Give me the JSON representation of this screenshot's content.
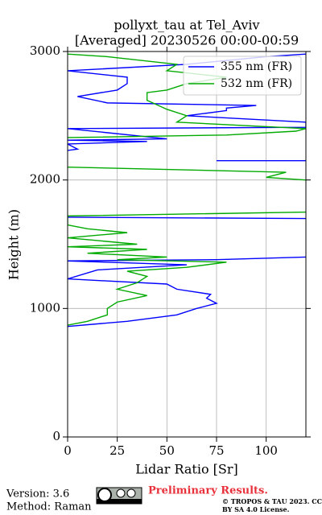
{
  "chart_data": {
    "type": "line",
    "title": "pollyxt_tau at Tel_Aviv",
    "subtitle": "[Averaged] 20230526 00:00-00:59",
    "x_label": "Lidar Ratio [Sr]",
    "y_label": "Height (m)",
    "xlim": [
      0,
      120
    ],
    "ylim": [
      0,
      3000
    ],
    "xticks": [
      0,
      25,
      50,
      75,
      100
    ],
    "yticks": [
      0,
      1000,
      2000,
      3000
    ],
    "grid": true,
    "legend": "upper right",
    "series": [
      {
        "name": "355 nm (FR)",
        "color": "#0000ff",
        "x": [
          0,
          30,
          55,
          65,
          75,
          70,
          72,
          55,
          50,
          0,
          15,
          60,
          0,
          75,
          120,
          null,
          120,
          0,
          null,
          75,
          120,
          null,
          0,
          5,
          0,
          40,
          0,
          50,
          0,
          120,
          120,
          60,
          80,
          80,
          95,
          20,
          5,
          25,
          30,
          30,
          0,
          60,
          100,
          120
        ],
        "y": [
          860,
          900,
          950,
          1000,
          1040,
          1080,
          1110,
          1150,
          1190,
          1230,
          1300,
          1340,
          1370,
          1380,
          1400,
          null,
          1700,
          1710,
          null,
          2150,
          2150,
          null,
          2230,
          2240,
          2280,
          2300,
          2310,
          2320,
          2400,
          2410,
          2450,
          2500,
          2540,
          2560,
          2580,
          2600,
          2650,
          2700,
          2750,
          2800,
          2850,
          2900,
          2960,
          2980
        ]
      },
      {
        "name": "532 nm (FR)",
        "color": "#00aa00",
        "x": [
          0,
          10,
          20,
          20,
          25,
          40,
          25,
          35,
          40,
          30,
          60,
          80,
          25,
          50,
          10,
          40,
          0,
          35,
          0,
          30,
          10,
          0,
          0,
          120,
          null,
          120,
          100,
          110,
          0,
          null,
          0,
          80,
          115,
          120,
          55,
          60,
          50,
          40,
          40,
          50,
          60,
          80,
          50,
          55,
          20,
          0
        ],
        "y": [
          870,
          900,
          950,
          1000,
          1050,
          1100,
          1150,
          1200,
          1250,
          1290,
          1320,
          1360,
          1380,
          1400,
          1430,
          1460,
          1480,
          1500,
          1550,
          1590,
          1620,
          1650,
          1720,
          1750,
          null,
          2000,
          2020,
          2060,
          2100,
          null,
          2330,
          2350,
          2380,
          2400,
          2450,
          2500,
          2550,
          2620,
          2680,
          2700,
          2750,
          2800,
          2850,
          2900,
          2960,
          2980
        ]
      }
    ]
  },
  "footer": {
    "version": "Version: 3.6",
    "method": "Method: Raman",
    "status": "Preliminary Results.",
    "license": "© TROPOS & TAU 2023. CC BY SA 4.0 License."
  }
}
